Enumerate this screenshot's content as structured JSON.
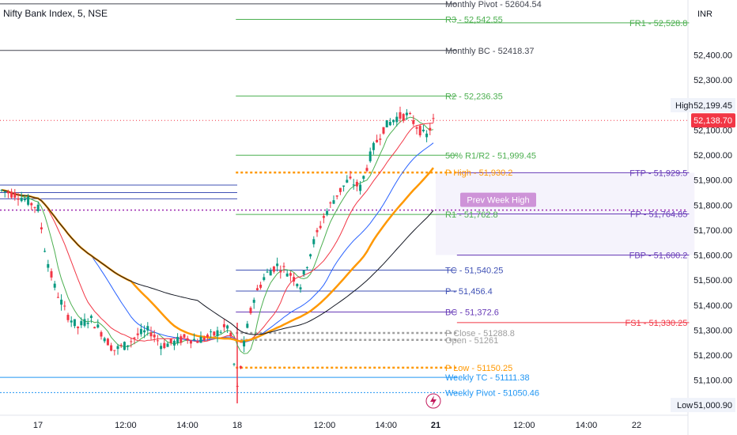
{
  "header": {
    "symbol_title": "Nifty Bank Index, 5, NSE",
    "currency": "INR"
  },
  "chart_data": {
    "type": "candlestick",
    "y_axis": {
      "ticks": [
        "52,400.00",
        "52,300.00",
        "52,200.00",
        "52,100.00",
        "52,000.00",
        "51,900.00",
        "51,800.00",
        "51,700.00",
        "51,600.00",
        "51,500.00",
        "51,400.00",
        "51,300.00",
        "51,200.00",
        "51,100.00"
      ],
      "tick_values": [
        52400,
        52300,
        52200,
        52100,
        52000,
        51900,
        51800,
        51700,
        51600,
        51500,
        51400,
        51300,
        51200,
        51100
      ],
      "range": [
        50960,
        52620
      ]
    },
    "x_axis": {
      "ticks": [
        {
          "label": "17",
          "t": 0
        },
        {
          "label": "12:00",
          "t": 0.44
        },
        {
          "label": "14:00",
          "t": 0.75
        },
        {
          "label": "18",
          "t": 1.0
        },
        {
          "label": "12:00",
          "t": 1.44
        },
        {
          "label": "14:00",
          "t": 1.75
        },
        {
          "label": "21",
          "t": 2.0
        },
        {
          "label": "12:00",
          "t": 2.44
        },
        {
          "label": "14:00",
          "t": 2.75
        },
        {
          "label": "22",
          "t": 3.0
        }
      ]
    },
    "price_badges": {
      "high_label": "High",
      "high_value": "52,199.45",
      "high_num": 52199.45,
      "current_value": "52,138.70",
      "current_num": 52138.7,
      "low_label": "Low",
      "low_value": "51,000.90",
      "low_num": 51000.9
    },
    "badge_colors": {
      "current": "#f23645",
      "high_low_bg": "#f0f3fa"
    },
    "candle_colors": {
      "up": "#089981",
      "down": "#f23645"
    },
    "levels": [
      {
        "label": "Monthly Pivot - 52604.54",
        "value": 52604.54,
        "color": "#434651",
        "style": "solid",
        "from": 0,
        "to": 0.62,
        "label_pos": "right-of-line"
      },
      {
        "label": "R3 - 52,542.55",
        "value": 52542.55,
        "color": "#4caf50",
        "style": "solid",
        "from": 0.32,
        "to": 0.62,
        "label_pos": "right-of-line"
      },
      {
        "label": "Monthly BC - 52418.37",
        "value": 52418.37,
        "color": "#434651",
        "style": "solid",
        "from": 0,
        "to": 0.62,
        "label_pos": "right-of-line"
      },
      {
        "label": "R2 - 52,236.35",
        "value": 52236.35,
        "color": "#4caf50",
        "style": "solid",
        "from": 0.32,
        "to": 0.62,
        "label_pos": "right-of-line"
      },
      {
        "label": "50% R1/R2 - 51,999.45",
        "value": 51999.45,
        "color": "#4caf50",
        "style": "solid",
        "from": 0.32,
        "to": 0.62,
        "label_pos": "right-of-line"
      },
      {
        "label": "P High - 51,930.2",
        "value": 51930.2,
        "color": "#ff9800",
        "style": "dotted-thick",
        "from": 0.32,
        "to": 0.62,
        "label_pos": "right-of-line"
      },
      {
        "label": "R1 - 51,762.8",
        "value": 51762.8,
        "color": "#4caf50",
        "style": "solid",
        "from": 0.32,
        "to": 0.62,
        "label_pos": "right-of-line"
      },
      {
        "label": "TC - 51,540.25",
        "value": 51540.25,
        "color": "#3f51b5",
        "style": "solid",
        "from": 0.32,
        "to": 0.62,
        "label_pos": "right-of-line"
      },
      {
        "label": "P - 51,456.4",
        "value": 51456.4,
        "color": "#3f51b5",
        "style": "solid",
        "from": 0.32,
        "to": 0.62,
        "label_pos": "right-of-line"
      },
      {
        "label": "BC - 51,372.6",
        "value": 51372.6,
        "color": "#673ab7",
        "style": "solid",
        "from": 0.32,
        "to": 0.62,
        "label_pos": "right-of-line"
      },
      {
        "label": "P Close - 51288.8",
        "value": 51288.8,
        "color": "#9e9e9e",
        "style": "dotted-thick",
        "from": 0.32,
        "to": 0.62,
        "label_pos": "right-of-line"
      },
      {
        "label": "Open - 51261",
        "value": 51261,
        "color": "#9e9e9e",
        "style": "dotted-thick",
        "from": 0.32,
        "to": 0.62,
        "label_pos": "right-of-line"
      },
      {
        "label": "P Low - 51150.25",
        "value": 51150.25,
        "color": "#ff9800",
        "style": "dotted-thick",
        "from": 0.32,
        "to": 0.62,
        "label_pos": "right-of-line"
      },
      {
        "label": "Weekly TC - 51111.38",
        "value": 51111.38,
        "color": "#2196f3",
        "style": "solid",
        "from": 0,
        "to": 0.62,
        "label_pos": "right-of-line"
      },
      {
        "label": "Weekly Pivot - 51050.46",
        "value": 51050.46,
        "color": "#2196f3",
        "style": "dotted",
        "from": 0,
        "to": 0.62,
        "label_pos": "right-of-line"
      },
      {
        "label": "FR1 - 52,528.8",
        "value": 52528.8,
        "color": "#4caf50",
        "style": "solid",
        "from": 0.62,
        "to": 0.935,
        "label_pos": "end"
      },
      {
        "label": "FTP - 51,929.5",
        "value": 51929.5,
        "color": "#673ab7",
        "style": "solid",
        "from": 0.62,
        "to": 0.935,
        "label_pos": "end"
      },
      {
        "label": "FP - 51,764.85",
        "value": 51764.85,
        "color": "#673ab7",
        "style": "solid",
        "from": 0.62,
        "to": 0.935,
        "label_pos": "end"
      },
      {
        "label": "FBP - 51,600.2",
        "value": 51600.2,
        "color": "#673ab7",
        "style": "solid",
        "from": 0.62,
        "to": 0.935,
        "label_pos": "end"
      },
      {
        "label": "FS1 - 51,330.25",
        "value": 51330.25,
        "color": "#f23645",
        "style": "solid",
        "from": 0.62,
        "to": 0.935,
        "label_pos": "end"
      }
    ],
    "prev_week_high": {
      "label": "Prev Week High",
      "value": 51780,
      "color": "#9c27b0"
    },
    "open_range_lines": [
      51880,
      51850,
      51825
    ],
    "future_band": {
      "top": 51929.5,
      "bottom": 51600.2,
      "color": "#f5f3fc"
    }
  }
}
